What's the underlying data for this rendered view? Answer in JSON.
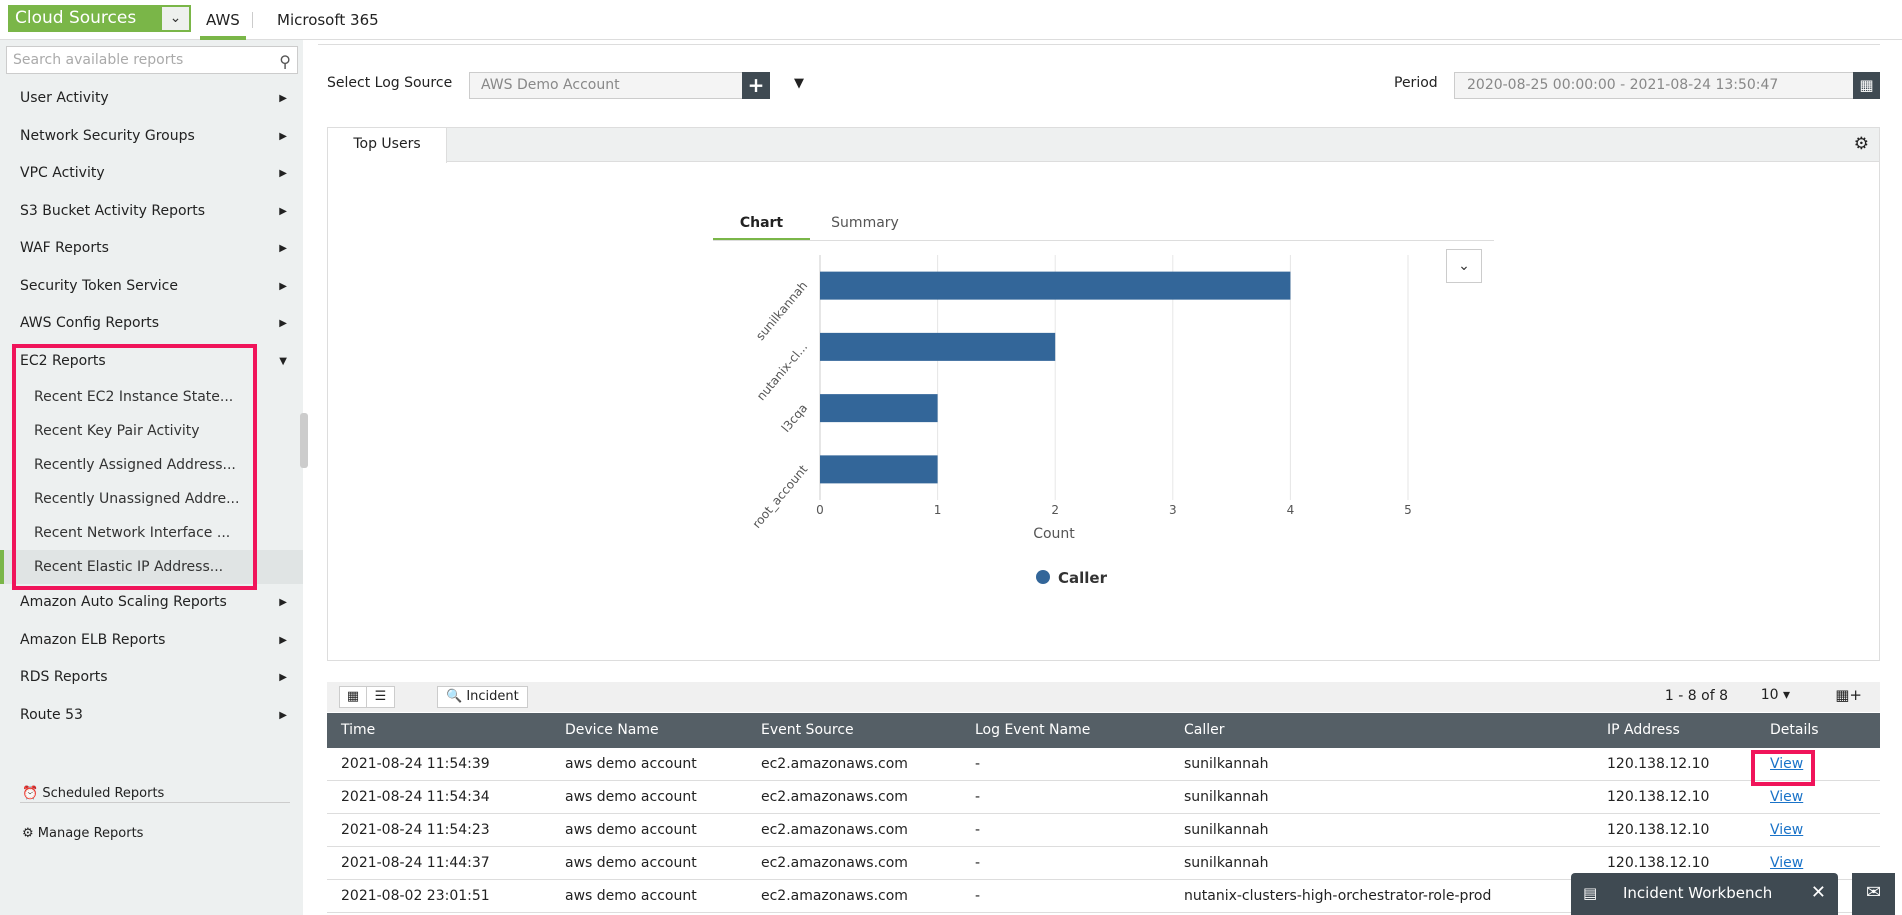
{
  "topbar": {
    "source_selector": "Cloud Sources",
    "tabs": [
      "AWS",
      "Microsoft 365"
    ],
    "active_tab": "AWS"
  },
  "sidebar": {
    "search_placeholder": "Search available reports",
    "items_before": [
      "User Activity",
      "Network Security Groups",
      "VPC Activity",
      "S3 Bucket Activity Reports",
      "WAF Reports",
      "Security Token Service",
      "AWS Config Reports"
    ],
    "expanded": {
      "label": "EC2 Reports",
      "children": [
        "Recent EC2 Instance State...",
        "Recent Key Pair Activity",
        "Recently Assigned Address...",
        "Recently Unassigned Addre...",
        "Recent Network Interface ...",
        "Recent Elastic IP Address..."
      ],
      "selected": "Recent Elastic IP Address..."
    },
    "items_after": [
      "Amazon Auto Scaling Reports",
      "Amazon ELB Reports",
      "RDS Reports",
      "Route 53"
    ],
    "bottom": [
      "Scheduled Reports",
      "Manage Reports"
    ]
  },
  "filters": {
    "log_source_label": "Select Log Source",
    "log_source_value": "AWS Demo Account",
    "period_label": "Period",
    "period_value": "2020-08-25 00:00:00 - 2021-08-24 13:50:47"
  },
  "panel": {
    "tab": "Top Users",
    "view_tabs": [
      "Chart",
      "Summary"
    ],
    "active_view": "Chart"
  },
  "chart_data": {
    "type": "bar",
    "orientation": "horizontal",
    "categories": [
      "sunilkannah",
      "nutanix-cl...",
      "l3cqa",
      "root_account"
    ],
    "series": [
      {
        "name": "Caller",
        "values": [
          4,
          2,
          1,
          1
        ]
      }
    ],
    "xlabel": "Count",
    "xlim": [
      0,
      5
    ],
    "xticks": [
      "0",
      "1",
      "2",
      "3",
      "4",
      "5"
    ],
    "grid": true,
    "legend": "bottom",
    "color": "#336699"
  },
  "table": {
    "toolbar": {
      "incident_label": "Incident",
      "pager": "1 - 8 of 8",
      "page_size": "10"
    },
    "columns": [
      "Time",
      "Device Name",
      "Event Source",
      "Log Event Name",
      "Caller",
      "IP Address",
      "Details"
    ],
    "rows": [
      [
        "2021-08-24 11:54:39",
        "aws demo account",
        "ec2.amazonaws.com",
        "-",
        "sunilkannah",
        "120.138.12.10",
        "View"
      ],
      [
        "2021-08-24 11:54:34",
        "aws demo account",
        "ec2.amazonaws.com",
        "-",
        "sunilkannah",
        "120.138.12.10",
        "View"
      ],
      [
        "2021-08-24 11:54:23",
        "aws demo account",
        "ec2.amazonaws.com",
        "-",
        "sunilkannah",
        "120.138.12.10",
        "View"
      ],
      [
        "2021-08-24 11:44:37",
        "aws demo account",
        "ec2.amazonaws.com",
        "-",
        "sunilkannah",
        "120.138.12.10",
        "View"
      ],
      [
        "2021-08-02 23:01:51",
        "aws demo account",
        "ec2.amazonaws.com",
        "-",
        "nutanix-clusters-high-orchestrator-role-prod",
        "",
        ""
      ]
    ]
  },
  "widget": {
    "incident_workbench": "Incident Workbench"
  },
  "colors": {
    "accent": "#7ab648",
    "highlight": "#f0145a",
    "header": "#555f66",
    "bar": "#336699"
  }
}
